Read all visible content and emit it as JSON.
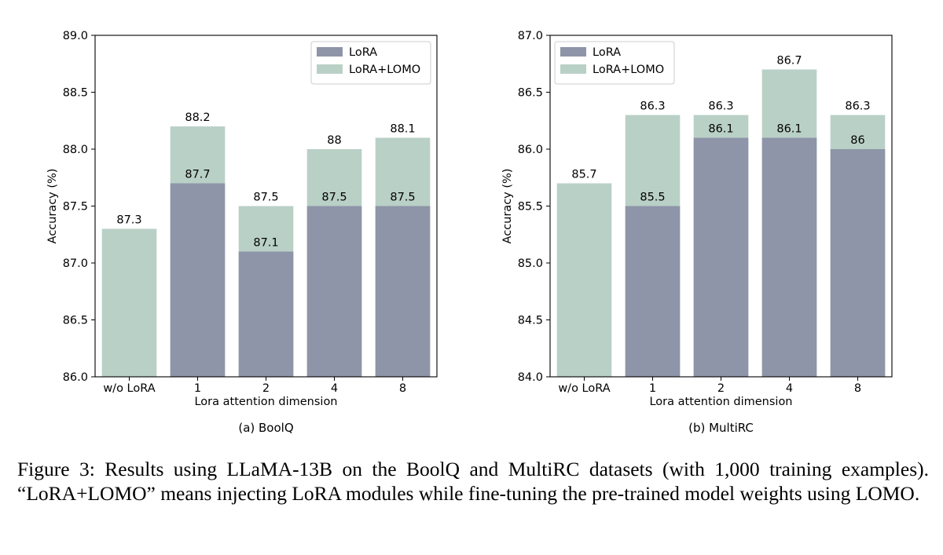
{
  "figure": {
    "caption": "Figure 3: Results using LLaMA-13B on the BoolQ and MultiRC datasets (with 1,000 training examples). “LoRA+LOMO” means injecting LoRA modules while fine-tuning the pre-trained model weights using LOMO."
  },
  "colors": {
    "lora": "#8e95a8",
    "lora_lomo": "#b9d0c7"
  },
  "chart_data": [
    {
      "type": "bar",
      "subtitle": "(a) BoolQ",
      "xlabel": "Lora attention dimension",
      "ylabel": "Accuracy (%)",
      "ylim": [
        86.0,
        89.0
      ],
      "yticks": [
        "86.0",
        "86.5",
        "87.0",
        "87.5",
        "88.0",
        "88.5",
        "89.0"
      ],
      "ytick_values": [
        86.0,
        86.5,
        87.0,
        87.5,
        88.0,
        88.5,
        89.0
      ],
      "categories": [
        "w/o LoRA",
        "1",
        "2",
        "4",
        "8"
      ],
      "legend_placement": "top-right",
      "series": [
        {
          "name": "LoRA",
          "values": [
            null,
            87.7,
            87.1,
            87.5,
            87.5
          ],
          "labels": [
            "",
            "87.7",
            "87.1",
            "87.5",
            "87.5"
          ]
        },
        {
          "name": "LoRA+LOMO",
          "values": [
            87.3,
            88.2,
            87.5,
            88.0,
            88.1
          ],
          "labels": [
            "87.3",
            "88.2",
            "87.5",
            "88",
            "88.1"
          ]
        }
      ]
    },
    {
      "type": "bar",
      "subtitle": "(b) MultiRC",
      "xlabel": "Lora attention dimension",
      "ylabel": "Accuracy (%)",
      "ylim": [
        84.0,
        87.0
      ],
      "yticks": [
        "84.0",
        "84.5",
        "85.0",
        "85.5",
        "86.0",
        "86.5",
        "87.0"
      ],
      "ytick_values": [
        84.0,
        84.5,
        85.0,
        85.5,
        86.0,
        86.5,
        87.0
      ],
      "categories": [
        "w/o LoRA",
        "1",
        "2",
        "4",
        "8"
      ],
      "legend_placement": "top-left",
      "series": [
        {
          "name": "LoRA",
          "values": [
            null,
            85.5,
            86.1,
            86.1,
            86.0
          ],
          "labels": [
            "",
            "85.5",
            "86.1",
            "86.1",
            "86"
          ]
        },
        {
          "name": "LoRA+LOMO",
          "values": [
            85.7,
            86.3,
            86.3,
            86.7,
            86.3
          ],
          "labels": [
            "85.7",
            "86.3",
            "86.3",
            "86.7",
            "86.3"
          ]
        }
      ]
    }
  ]
}
